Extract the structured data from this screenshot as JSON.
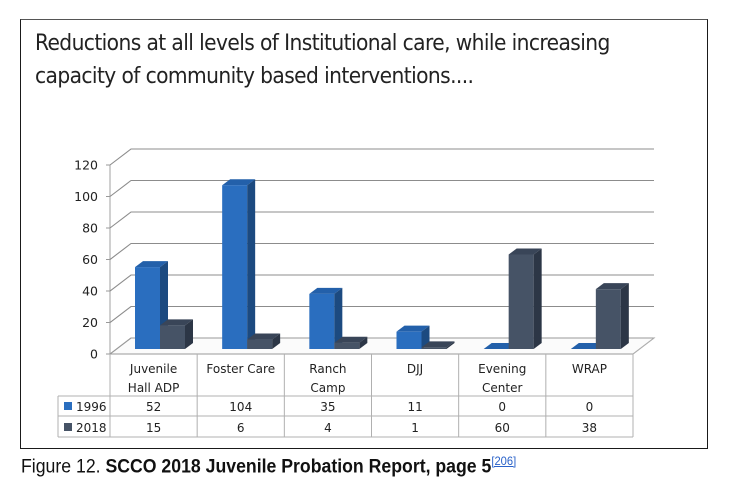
{
  "slide": {
    "title_line1": "Reductions at all levels of Institutional care, while increasing",
    "title_line2": "capacity of community based interventions...."
  },
  "caption": {
    "prefix": "Figure 12. ",
    "title": "SCCO 2018 Juvenile Probation Report, page 5",
    "reference": "[206]"
  },
  "colors": {
    "series_1996": "#2a6ebf",
    "series_2018": "#465366"
  },
  "chart_data": {
    "type": "bar",
    "style": "3d-clustered-column-with-data-table",
    "title": "Reductions at all levels of Institutional care, while increasing capacity of community based interventions....",
    "categories": [
      [
        "Juvenile",
        "Hall ADP"
      ],
      [
        "Foster Care"
      ],
      [
        "Ranch",
        "Camp"
      ],
      [
        "DJJ"
      ],
      [
        "Evening",
        "Center"
      ],
      [
        "WRAP"
      ]
    ],
    "category_names": [
      "Juvenile Hall ADP",
      "Foster Care",
      "Ranch Camp",
      "DJJ",
      "Evening Center",
      "WRAP"
    ],
    "series": [
      {
        "name": "1996",
        "color": "#2a6ebf",
        "values": [
          52,
          104,
          35,
          11,
          0,
          0
        ]
      },
      {
        "name": "2018",
        "color": "#465366",
        "values": [
          15,
          6,
          4,
          1,
          60,
          38
        ]
      }
    ],
    "xlabel": "",
    "ylabel": "",
    "ylim": [
      0,
      120
    ],
    "yticks": [
      0,
      20,
      40,
      60,
      80,
      100,
      120
    ],
    "grid": true,
    "legend": "data-table-left"
  }
}
